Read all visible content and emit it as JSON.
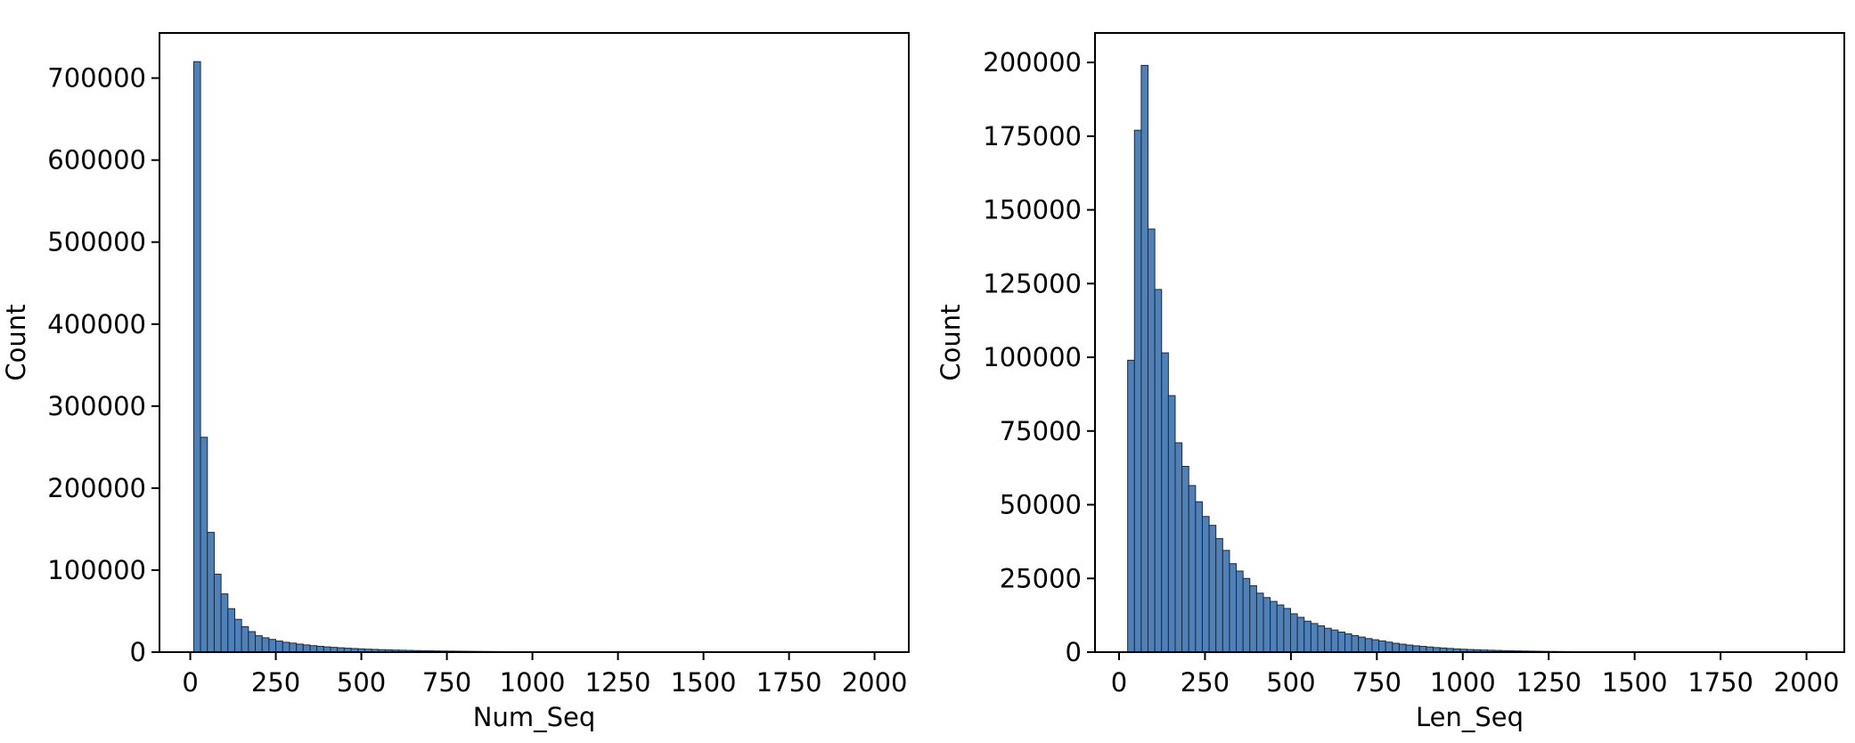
{
  "chart_data": [
    {
      "type": "bar",
      "subtype": "histogram",
      "xlabel": "Num_Seq",
      "ylabel": "Count",
      "xlim": [
        -90,
        2100
      ],
      "ylim": [
        0,
        755000
      ],
      "xticks": [
        0,
        250,
        500,
        750,
        1000,
        1250,
        1500,
        1750,
        2000
      ],
      "yticks": [
        0,
        100000,
        200000,
        300000,
        400000,
        500000,
        600000,
        700000
      ],
      "bin_start": 10,
      "bin_width": 20,
      "bar_color": "#4f81b8",
      "edge_color": "#1a2a3a",
      "values": [
        720000,
        262000,
        146000,
        95000,
        71000,
        53000,
        40000,
        31000,
        25000,
        20000,
        17500,
        15500,
        13500,
        12000,
        11000,
        9800,
        8800,
        7900,
        7100,
        6400,
        5800,
        5300,
        4800,
        4400,
        4000,
        3600,
        3300,
        3000,
        2750,
        2500,
        2300,
        2100,
        1900,
        1750,
        1600,
        1450,
        1350,
        1250,
        1150,
        1050,
        960,
        880,
        800,
        740,
        680,
        620,
        570,
        520,
        480,
        440,
        400,
        370,
        340,
        310,
        285,
        260,
        240,
        220,
        200,
        185,
        170,
        155,
        140,
        130,
        120,
        110,
        100,
        92,
        85,
        78,
        72,
        66,
        60,
        55,
        50,
        46,
        42,
        38,
        35,
        32,
        29,
        26,
        24,
        22,
        20,
        18,
        16,
        15,
        14,
        13,
        12,
        11,
        10,
        9,
        8,
        7,
        6,
        5,
        4,
        3
      ]
    },
    {
      "type": "bar",
      "subtype": "histogram",
      "xlabel": "Len_Seq",
      "ylabel": "Count",
      "xlim": [
        -70,
        2110
      ],
      "ylim": [
        0,
        210000
      ],
      "xticks": [
        0,
        250,
        500,
        750,
        1000,
        1250,
        1500,
        1750,
        2000
      ],
      "yticks": [
        0,
        25000,
        50000,
        75000,
        100000,
        125000,
        150000,
        175000,
        200000
      ],
      "bin_start": 25,
      "bin_width": 19.75,
      "bar_color": "#4f81b8",
      "edge_color": "#1a2a3a",
      "values": [
        99000,
        177000,
        199000,
        143500,
        123000,
        101500,
        87000,
        71000,
        63000,
        56500,
        51000,
        46000,
        43000,
        38500,
        34500,
        30000,
        27500,
        25000,
        22500,
        20000,
        18500,
        17200,
        16000,
        14800,
        13000,
        11800,
        10500,
        9700,
        8900,
        8100,
        7500,
        6800,
        6200,
        5600,
        5100,
        4600,
        4200,
        3800,
        3400,
        3000,
        2700,
        2400,
        2150,
        1950,
        1750,
        1550,
        1400,
        1250,
        1100,
        980,
        880,
        790,
        710,
        640,
        570,
        510,
        460,
        410,
        370,
        330,
        295,
        265,
        235,
        210,
        190,
        170,
        150,
        135,
        120,
        105,
        95,
        85,
        75,
        67,
        60,
        53,
        47,
        42,
        37,
        33,
        29,
        26,
        23,
        20,
        18,
        16,
        14,
        12,
        11,
        10,
        9,
        8,
        7,
        6,
        5,
        4,
        4,
        3,
        3,
        2
      ]
    }
  ]
}
